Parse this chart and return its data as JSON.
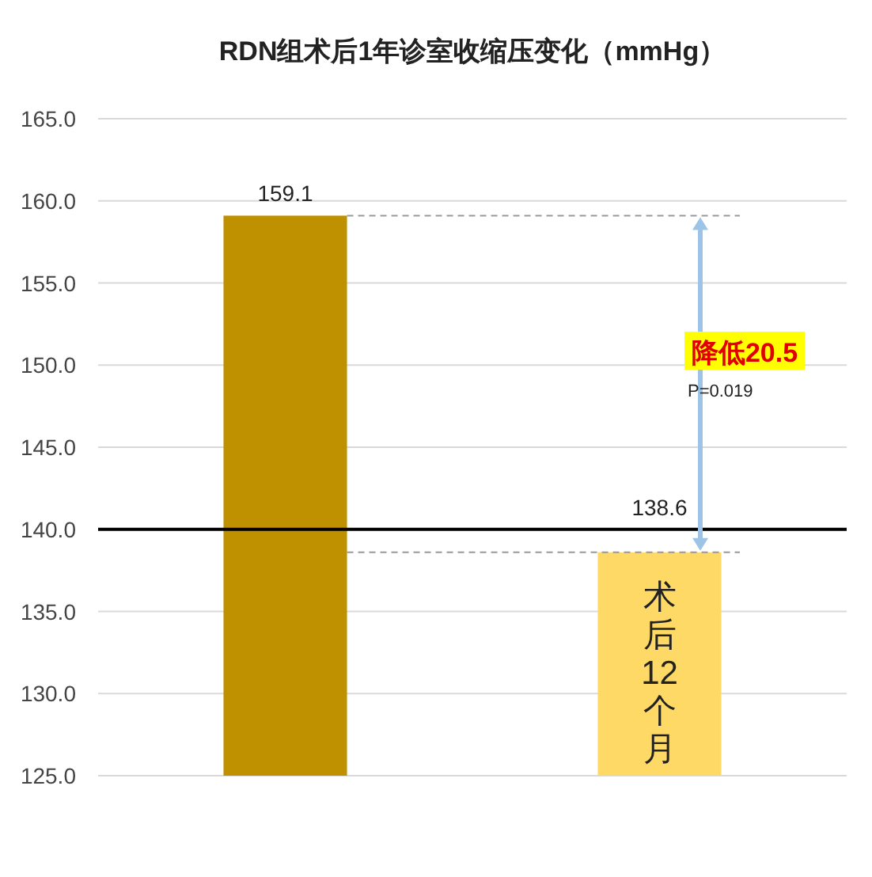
{
  "chart_data": {
    "type": "bar",
    "title": "RDN组术后1年诊室收缩压变化（mmHg）",
    "categories": [
      null,
      null
    ],
    "values": [
      159.1,
      138.6
    ],
    "colors": [
      "#bf9000",
      "#ffd966"
    ],
    "ylim": [
      125,
      165
    ],
    "yticks": [
      {
        "value": 125,
        "label": "125.0"
      },
      {
        "value": 130,
        "label": "130.0"
      },
      {
        "value": 135,
        "label": "135.0"
      },
      {
        "value": 140,
        "label": "140.0"
      },
      {
        "value": 145,
        "label": "145.0"
      },
      {
        "value": 150,
        "label": "150.0"
      },
      {
        "value": 155,
        "label": "155.0"
      },
      {
        "value": 160,
        "label": "160.0"
      },
      {
        "value": 165,
        "label": "165.0"
      }
    ],
    "grid": "y",
    "data_labels": true,
    "tick_labels": "y",
    "ref_lines": [
      {
        "axis": "y",
        "value": 140,
        "color": "#000000",
        "line_style": "solid"
      },
      {
        "axis": "y",
        "value": 159.1,
        "color": "#999999",
        "line_style": "dashed"
      },
      {
        "axis": "y",
        "value": 138.6,
        "color": "#999999",
        "line_style": "dashed"
      }
    ],
    "annotations": [
      "降低20.5",
      "P=0.019",
      "术后12个月"
    ]
  }
}
